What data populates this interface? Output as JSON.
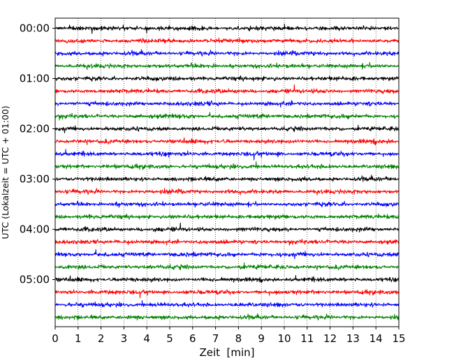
{
  "chart_data": {
    "type": "line",
    "title": "",
    "xlabel": "Zeit  [min]",
    "ylabel": "UTC (Lokalzeit = UTC + 01:00)",
    "xlim": [
      0,
      15
    ],
    "x_ticks": [
      "0",
      "1",
      "2",
      "3",
      "4",
      "5",
      "6",
      "7",
      "8",
      "9",
      "10",
      "11",
      "12",
      "13",
      "14",
      "15"
    ],
    "y_ticks": [
      "00:00",
      "01:00",
      "02:00",
      "03:00",
      "04:00",
      "05:00"
    ],
    "grid": "vertical dotted at each minute",
    "trace_interval_minutes": 15,
    "traces_per_hour": 4,
    "num_traces": 24,
    "trace_colors": [
      "#000000",
      "#ff0000",
      "#0000ff",
      "#008000"
    ],
    "series": [
      {
        "start": "00:00",
        "color": "#000000"
      },
      {
        "start": "00:15",
        "color": "#ff0000"
      },
      {
        "start": "00:30",
        "color": "#0000ff"
      },
      {
        "start": "00:45",
        "color": "#008000"
      },
      {
        "start": "01:00",
        "color": "#000000"
      },
      {
        "start": "01:15",
        "color": "#ff0000"
      },
      {
        "start": "01:30",
        "color": "#0000ff"
      },
      {
        "start": "01:45",
        "color": "#008000"
      },
      {
        "start": "02:00",
        "color": "#000000"
      },
      {
        "start": "02:15",
        "color": "#ff0000"
      },
      {
        "start": "02:30",
        "color": "#0000ff"
      },
      {
        "start": "02:45",
        "color": "#008000"
      },
      {
        "start": "03:00",
        "color": "#000000"
      },
      {
        "start": "03:15",
        "color": "#ff0000"
      },
      {
        "start": "03:30",
        "color": "#0000ff"
      },
      {
        "start": "03:45",
        "color": "#008000"
      },
      {
        "start": "04:00",
        "color": "#000000"
      },
      {
        "start": "04:15",
        "color": "#ff0000"
      },
      {
        "start": "04:30",
        "color": "#0000ff"
      },
      {
        "start": "04:45",
        "color": "#008000"
      },
      {
        "start": "05:00",
        "color": "#000000"
      },
      {
        "start": "05:15",
        "color": "#ff0000"
      },
      {
        "start": "05:30",
        "color": "#0000ff"
      },
      {
        "start": "05:45",
        "color": "#008000"
      }
    ]
  }
}
